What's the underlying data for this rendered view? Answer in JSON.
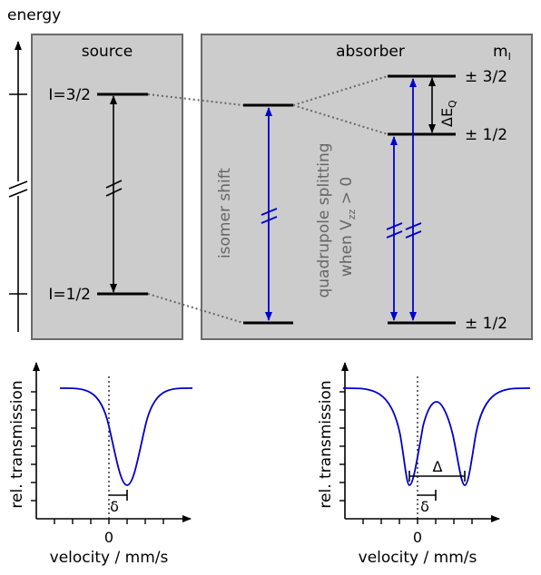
{
  "diagram": {
    "energy_label": "energy",
    "source": {
      "title": "source",
      "upper_level": "I=3/2",
      "lower_level": "I=1/2"
    },
    "absorber": {
      "title": "absorber",
      "mI_label": "m",
      "mI_sub": "I",
      "levels": {
        "top": "± 3/2",
        "middle": "± 1/2",
        "bottom": "± 1/2"
      },
      "isomer_shift": "isomer  shift",
      "quadrupole_line1": "quadrupole splitting",
      "quadrupole_line2_pre": "when V",
      "quadrupole_line2_sub": "zz",
      "quadrupole_line2_post": " > 0",
      "delta_eq_main": "ΔE",
      "delta_eq_sub": "Q"
    },
    "colors": {
      "box": "#cccccc",
      "transition": "#0000cc",
      "spectrum": "#0000cc"
    }
  },
  "spectra": [
    {
      "ylabel": "rel. transmission",
      "xlabel": "velocity / mm/s",
      "zero_label": "0",
      "shift_label": "δ"
    },
    {
      "ylabel": "rel. transmission",
      "xlabel": "velocity / mm/s",
      "zero_label": "0",
      "shift_label": "δ",
      "splitting_label": "Δ"
    }
  ]
}
